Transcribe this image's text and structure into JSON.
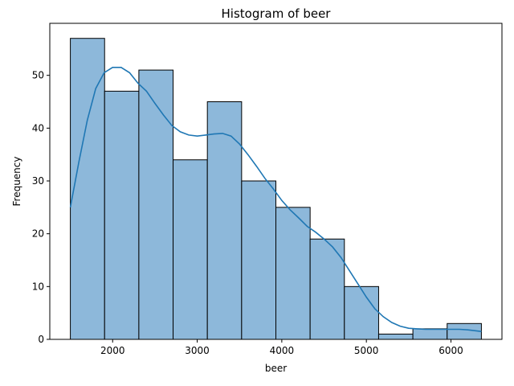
{
  "chart_data": {
    "type": "bar",
    "title": "Histogram of beer",
    "xlabel": "beer",
    "ylabel": "Frequency",
    "bins": [
      {
        "start": 1500,
        "end": 1905,
        "count": 57
      },
      {
        "start": 1905,
        "end": 2310,
        "count": 47
      },
      {
        "start": 2310,
        "end": 2715,
        "count": 51
      },
      {
        "start": 2715,
        "end": 3120,
        "count": 34
      },
      {
        "start": 3120,
        "end": 3525,
        "count": 45
      },
      {
        "start": 3525,
        "end": 3930,
        "count": 30
      },
      {
        "start": 3930,
        "end": 4335,
        "count": 25
      },
      {
        "start": 4335,
        "end": 4740,
        "count": 19
      },
      {
        "start": 4740,
        "end": 5145,
        "count": 10
      },
      {
        "start": 5145,
        "end": 5550,
        "count": 1
      },
      {
        "start": 5550,
        "end": 5955,
        "count": 2
      },
      {
        "start": 5955,
        "end": 6360,
        "count": 3
      }
    ],
    "kde": {
      "x": [
        1500,
        1600,
        1700,
        1800,
        1900,
        2000,
        2100,
        2200,
        2300,
        2400,
        2500,
        2600,
        2700,
        2800,
        2900,
        3000,
        3100,
        3200,
        3300,
        3400,
        3500,
        3600,
        3700,
        3800,
        3900,
        4000,
        4100,
        4200,
        4300,
        4400,
        4500,
        4600,
        4700,
        4800,
        4900,
        5000,
        5100,
        5200,
        5300,
        5400,
        5500,
        5600,
        5700,
        5800,
        5900,
        6000,
        6100,
        6200,
        6360
      ],
      "y": [
        25,
        33.5,
        41.5,
        47.5,
        50.5,
        51.5,
        51.5,
        50.5,
        48.5,
        47,
        44.7,
        42.5,
        40.5,
        39.3,
        38.7,
        38.5,
        38.7,
        38.9,
        39,
        38.5,
        37,
        35,
        32.8,
        30.5,
        28.5,
        26.3,
        24.5,
        23,
        21.4,
        20.3,
        19,
        17.5,
        15.5,
        13,
        10.5,
        8,
        5.8,
        4.3,
        3.2,
        2.5,
        2.1,
        2,
        1.9,
        1.9,
        1.9,
        1.9,
        1.9,
        1.8,
        1.5
      ]
    },
    "xlim": [
      1257,
      6603
    ],
    "ylim": [
      0,
      59.85
    ],
    "xticks": [
      2000,
      3000,
      4000,
      5000,
      6000
    ],
    "yticks": [
      0,
      10,
      20,
      30,
      40,
      50
    ],
    "grid": false,
    "colors": {
      "bar_fill": "#8db8da",
      "bar_edge": "#000000",
      "kde_line": "#1f77b4"
    }
  }
}
